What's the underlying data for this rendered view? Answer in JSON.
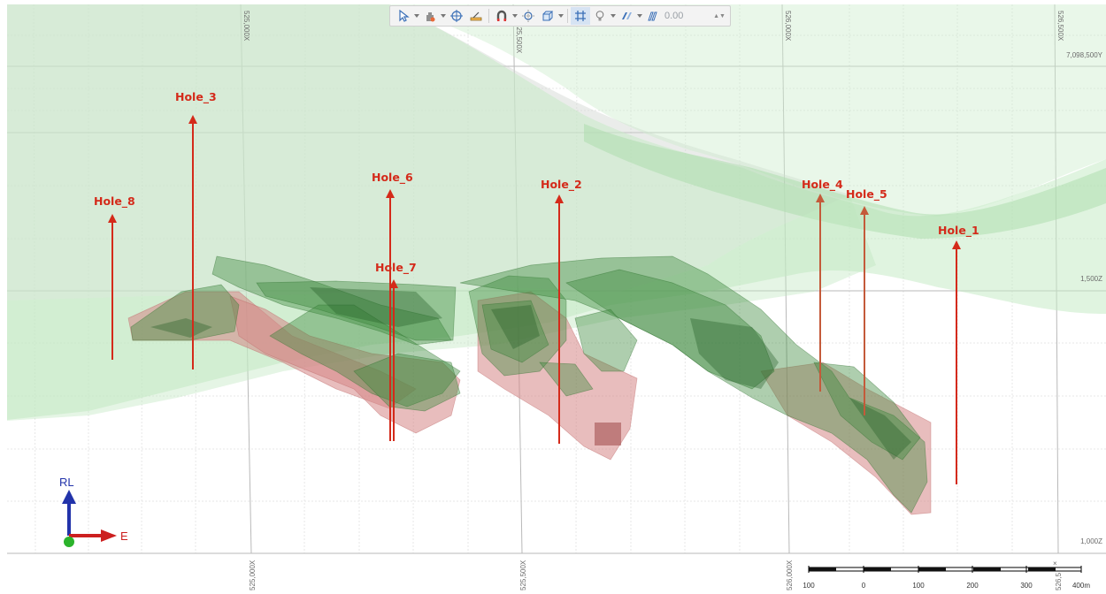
{
  "toolbar": {
    "value": "0.00",
    "tools": [
      {
        "name": "select-arrow-icon",
        "dropdown": true
      },
      {
        "name": "pan-tool-icon",
        "dropdown": true
      },
      {
        "name": "crosshair-icon",
        "dropdown": false
      },
      {
        "name": "measure-ruler-icon",
        "dropdown": false
      },
      {
        "name": "magnet-icon",
        "dropdown": true
      },
      {
        "name": "section-target-icon",
        "dropdown": false
      },
      {
        "name": "box-view-icon",
        "dropdown": true
      },
      {
        "name": "grid-icon",
        "dropdown": false
      },
      {
        "name": "light-bulb-icon",
        "dropdown": true
      },
      {
        "name": "slice-icon",
        "dropdown": true
      },
      {
        "name": "thickness-icon",
        "dropdown": false
      }
    ]
  },
  "grid_labels": {
    "top": [
      "525,000X",
      "525,500X",
      "526,000X",
      "526,500X"
    ],
    "bottom": [
      "525,000X",
      "525,500X",
      "526,000X",
      "526,5"
    ],
    "right": [
      "7,098,500Y",
      "1,500Z",
      "1,000Z"
    ]
  },
  "holes": [
    {
      "label": "Hole_3"
    },
    {
      "label": "Hole_8"
    },
    {
      "label": "Hole_6"
    },
    {
      "label": "Hole_7"
    },
    {
      "label": "Hole_2"
    },
    {
      "label": "Hole_4"
    },
    {
      "label": "Hole_5"
    },
    {
      "label": "Hole_1"
    }
  ],
  "axes": {
    "vertical": "RL",
    "horizontal": "E"
  },
  "scale_bar": {
    "ticks": [
      "100",
      "0",
      "100",
      "200",
      "300",
      "400m"
    ]
  },
  "colors": {
    "hole": "#d42a1a",
    "hole_alt": "#c45a3a",
    "surface": "#9ed89e",
    "orebody": "#3c8a3c",
    "shell": "#d98a8a",
    "axis_v": "#2233aa",
    "axis_h": "#cc1f1f"
  }
}
